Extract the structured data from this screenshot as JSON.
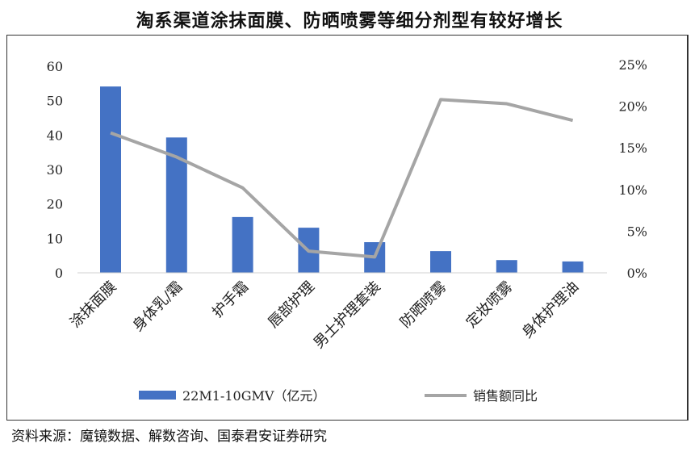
{
  "chart_data": {
    "type": "bar+line",
    "title": "淘系渠道涂抹面膜、防晒喷雾等细分剂型有较好增长",
    "categories": [
      "涂抹面膜",
      "身体乳/霜",
      "护手霜",
      "唇部护理",
      "男士护理套装",
      "防晒喷雾",
      "定妆喷雾",
      "身体护理油"
    ],
    "series": [
      {
        "name": "22M1-10GMV（亿元）",
        "type": "bar",
        "axis": "left",
        "color": "#4472C4",
        "values": [
          54.1,
          39.3,
          16.2,
          13.1,
          8.9,
          6.3,
          3.7,
          3.3
        ]
      },
      {
        "name": "销售额同比",
        "type": "line",
        "axis": "right",
        "color": "#A5A5A5",
        "values": [
          16.8,
          13.9,
          10.2,
          2.6,
          1.9,
          20.8,
          20.3,
          18.3
        ]
      }
    ],
    "left_axis": {
      "ylim": [
        0,
        60
      ],
      "ticks": [
        "0",
        "10",
        "20",
        "30",
        "40",
        "50",
        "60"
      ]
    },
    "right_axis": {
      "ylim": [
        0,
        25
      ],
      "unit": "%",
      "ticks": [
        "0%",
        "5%",
        "10%",
        "15%",
        "20%",
        "25%"
      ]
    },
    "grid": false,
    "legend": "bottom"
  },
  "source": "资料来源：魔镜数据、解数咨询、国泰君安证券研究"
}
